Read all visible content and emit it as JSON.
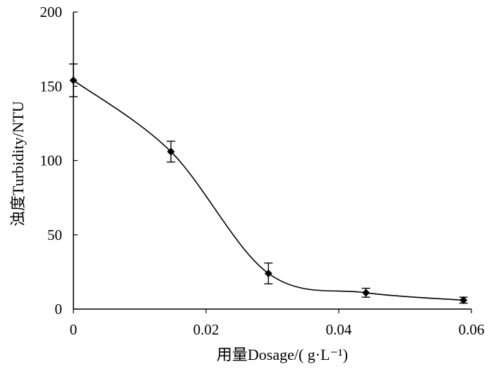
{
  "chart_data": {
    "type": "line",
    "title": "",
    "xlabel": "用量Dosage/( g·L⁻¹)",
    "ylabel": "浊度Turbidity/NTU",
    "xlim": [
      0,
      0.06
    ],
    "ylim": [
      0,
      200
    ],
    "x_ticks": [
      "0",
      "0.02",
      "0.04",
      "0.06"
    ],
    "y_ticks": [
      "0",
      "50",
      "100",
      "150",
      "200"
    ],
    "x_tick_values": [
      0,
      0.02,
      0.04,
      0.06
    ],
    "y_tick_values": [
      0,
      50,
      100,
      150,
      200
    ],
    "grid": false,
    "legend": "none",
    "series": [
      {
        "x": [
          0,
          0.0147,
          0.0294,
          0.0441,
          0.0588
        ],
        "y": [
          154,
          106,
          24,
          11,
          6
        ],
        "error": [
          11,
          7,
          7,
          3,
          2
        ],
        "marker": "diamond",
        "smooth": true
      }
    ]
  }
}
